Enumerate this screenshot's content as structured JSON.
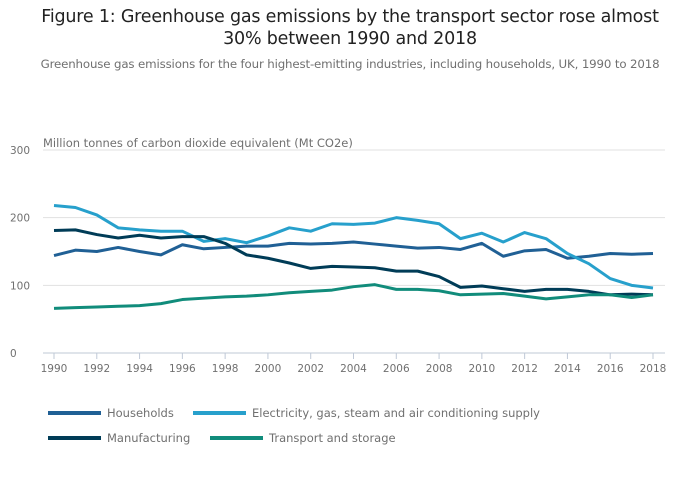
{
  "title": "Figure 1: Greenhouse gas emissions by the transport sector rose almost 30% between 1990 and 2018",
  "title_line1": "Figure 1: Greenhouse gas emissions by the transport sector rose almost",
  "title_line2": "30% between 1990 and 2018",
  "subtitle": "Greenhouse gas emissions for the four highest-emitting industries, including households, UK, 1990 to 2018",
  "chart_data": {
    "type": "line",
    "title": "Figure 1: Greenhouse gas emissions by the transport sector rose almost 30% between 1990 and 2018",
    "subtitle": "Greenhouse gas emissions for the four highest-emitting industries, including households, UK, 1990 to 2018",
    "xlabel": "",
    "ylabel": "Million tonnes of carbon dioxide equivalent (Mt CO2e)",
    "ylim": [
      0,
      300
    ],
    "xlim": [
      1990,
      2018
    ],
    "yticks": [
      0,
      100,
      200,
      300
    ],
    "yticklabels": [
      "0",
      "100",
      "200",
      "300"
    ],
    "xticks": [
      1990,
      1992,
      1994,
      1996,
      1998,
      2000,
      2002,
      2004,
      2006,
      2008,
      2010,
      2012,
      2014,
      2016,
      2018
    ],
    "xticklabels": [
      "1990",
      "1992",
      "1994",
      "1996",
      "1998",
      "2000",
      "2002",
      "2004",
      "2006",
      "2008",
      "2010",
      "2012",
      "2014",
      "2016",
      "2018"
    ],
    "grid": "horizontal",
    "legend_position": "bottom",
    "x": [
      1990,
      1991,
      1992,
      1993,
      1994,
      1995,
      1996,
      1997,
      1998,
      1999,
      2000,
      2001,
      2002,
      2003,
      2004,
      2005,
      2006,
      2007,
      2008,
      2009,
      2010,
      2011,
      2012,
      2013,
      2014,
      2015,
      2016,
      2017,
      2018
    ],
    "series": [
      {
        "name": "Households",
        "color": "#206095",
        "values": [
          144,
          152,
          150,
          156,
          150,
          145,
          160,
          154,
          156,
          158,
          158,
          162,
          161,
          162,
          164,
          161,
          158,
          155,
          156,
          153,
          162,
          143,
          151,
          153,
          140,
          143,
          147,
          146,
          147
        ]
      },
      {
        "name": "Electricity, gas, steam and air conditioning supply",
        "color": "#27a0cc",
        "values": [
          218,
          215,
          204,
          185,
          182,
          180,
          180,
          165,
          169,
          163,
          173,
          185,
          180,
          191,
          190,
          192,
          200,
          196,
          191,
          169,
          177,
          164,
          178,
          169,
          147,
          132,
          110,
          100,
          96
        ]
      },
      {
        "name": "Manufacturing",
        "color": "#003c57",
        "values": [
          181,
          182,
          175,
          170,
          174,
          170,
          172,
          172,
          162,
          145,
          140,
          133,
          125,
          128,
          127,
          126,
          121,
          121,
          113,
          97,
          99,
          95,
          91,
          94,
          94,
          91,
          86,
          87,
          86
        ]
      },
      {
        "name": "Transport and storage",
        "color": "#118c7b",
        "values": [
          66,
          67,
          68,
          69,
          70,
          73,
          79,
          81,
          83,
          84,
          86,
          89,
          91,
          93,
          98,
          101,
          94,
          94,
          92,
          86,
          87,
          88,
          84,
          80,
          83,
          86,
          86,
          82,
          86
        ]
      }
    ]
  },
  "legend": {
    "items": [
      {
        "label": "Households",
        "color": "#206095"
      },
      {
        "label": "Electricity, gas, steam and air conditioning supply",
        "color": "#27a0cc"
      },
      {
        "label": "Manufacturing",
        "color": "#003c57"
      },
      {
        "label": "Transport and storage",
        "color": "#118c7b"
      }
    ]
  }
}
